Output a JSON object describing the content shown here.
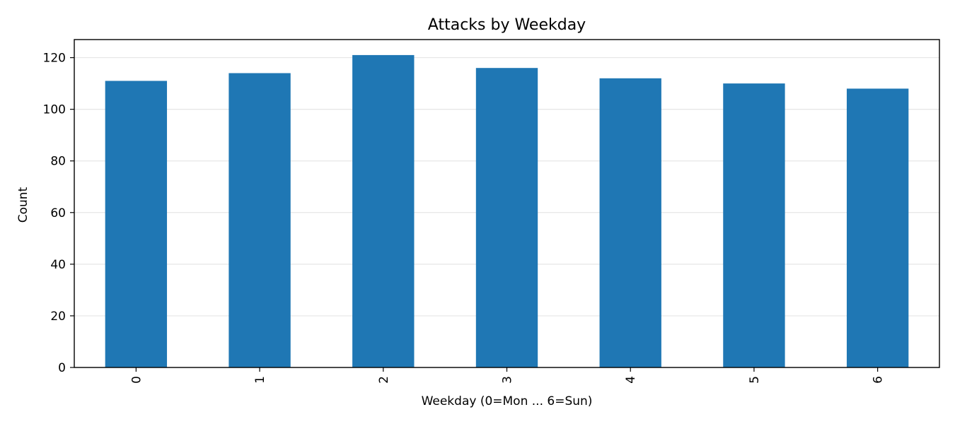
{
  "chart_data": {
    "type": "bar",
    "title": "Attacks by Weekday",
    "xlabel": "Weekday (0=Mon ... 6=Sun)",
    "ylabel": "Count",
    "categories": [
      "0",
      "1",
      "2",
      "3",
      "4",
      "5",
      "6"
    ],
    "values": [
      111,
      114,
      121,
      116,
      112,
      110,
      108
    ],
    "ylim": [
      0,
      127
    ],
    "yticks": [
      0,
      20,
      40,
      60,
      80,
      100,
      120
    ],
    "grid": "y",
    "bar_color": "#1f77b4",
    "legend": "none"
  }
}
